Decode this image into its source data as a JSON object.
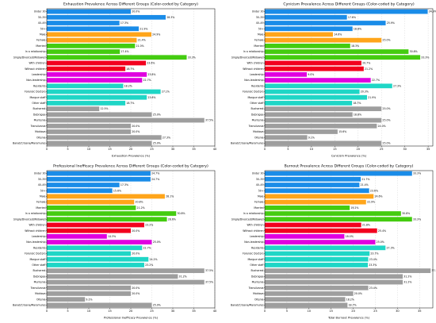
{
  "colors": {
    "Age": "#1a8ce8",
    "Gender": "#ffa51a",
    "Relationship": "#44cc10",
    "Children": "#f2001e",
    "Role": "#e000e0",
    "Staff": "#1fd6c6",
    "City": "#9e9e9e"
  },
  "chart_data": [
    {
      "type": "bar",
      "orientation": "horizontal",
      "title": "Exhaustion Prevalence Across Different Groups (Color-coded by Category)",
      "xlabel": "Exhaustion Prevalence (%)",
      "xlim": [
        0,
        40
      ],
      "xticks": [
        "0",
        "5",
        "10",
        "15",
        "20",
        "25",
        "30",
        "35",
        "40"
      ],
      "grid": true,
      "categories": [
        "Under 30",
        "30–39",
        "40–49",
        "50+",
        "Male",
        "Female",
        "Married",
        "In a relationship",
        "Single/Divorced/Widowed",
        "With children",
        "Without children",
        "Leadership",
        "Non-leadership",
        "Residents",
        "Forensic Doctors",
        "Morgue staff",
        "Other staff",
        "Bucharest",
        "Debrogea",
        "Muntenia",
        "Transilvania",
        "Moldova",
        "Oltenia",
        "Banat/Crisana/Maramures"
      ],
      "groups": [
        "Age",
        "Age",
        "Age",
        "Age",
        "Gender",
        "Gender",
        "Relationship",
        "Relationship",
        "Relationship",
        "Children",
        "Children",
        "Role",
        "Role",
        "Staff",
        "Staff",
        "Staff",
        "Staff",
        "City",
        "City",
        "City",
        "City",
        "City",
        "City",
        "City"
      ],
      "values": [
        20.0,
        28.3,
        17.3,
        21.9,
        24.9,
        21.4,
        21.0,
        17.4,
        33.3,
        23.6,
        18.7,
        23.8,
        22.7,
        18.2,
        27.1,
        23.8,
        18.7,
        12.5,
        25.0,
        37.5,
        20.0,
        20.0,
        27.3,
        25.0
      ],
      "labels": [
        "20.0%",
        "28.3%",
        "17.3%",
        "21.9%",
        "24.9%",
        "21.4%",
        "21.0%",
        "17.4%",
        "33.3%",
        "23.6%",
        "18.7%",
        "23.8%",
        "22.7%",
        "18.2%",
        "27.1%",
        "23.8%",
        "18.7%",
        "12.5%",
        "25.0%",
        "37.5%",
        "20.0%",
        "20.0%",
        "27.3%",
        "25.0%"
      ]
    },
    {
      "type": "bar",
      "orientation": "horizontal",
      "title": "Cynicism Prevalence Across Different Groups (Color-coded by Category)",
      "xlabel": "Cynicism Prevalence (%)",
      "xlim": [
        0,
        36
      ],
      "xticks": [
        "0",
        "5",
        "10",
        "15",
        "20",
        "25",
        "30",
        "35"
      ],
      "grid": true,
      "categories": [
        "Under 30",
        "30–39",
        "40–49",
        "50+",
        "Male",
        "Female",
        "Married",
        "In a relationship",
        "Single/Divorced/Widowed",
        "With children",
        "Without children",
        "Leadership",
        "Non-leadership",
        "Residents",
        "Forensic Doctors",
        "Morgue staff",
        "Other staff",
        "Bucharest",
        "Debrogea",
        "Muntenia",
        "Transilvania",
        "Moldova",
        "Oltenia",
        "Banat/Crisana/Maramures"
      ],
      "groups": [
        "Age",
        "Age",
        "Age",
        "Age",
        "Gender",
        "Gender",
        "Relationship",
        "Relationship",
        "Relationship",
        "Children",
        "Children",
        "Role",
        "Role",
        "Staff",
        "Staff",
        "Staff",
        "Staff",
        "City",
        "City",
        "City",
        "City",
        "City",
        "City",
        "City"
      ],
      "values": [
        34.9,
        17.6,
        25.9,
        18.8,
        14.6,
        25.0,
        18.3,
        30.8,
        33.3,
        20.7,
        21.2,
        9.0,
        22.7,
        27.3,
        20.3,
        21.9,
        18.7,
        25.0,
        18.8,
        25.0,
        24.0,
        15.6,
        9.1,
        25.0
      ],
      "labels": [
        "34.9%",
        "17.6%",
        "25.9%",
        "18.8%",
        "14.6%",
        "25.0%",
        "18.3%",
        "30.8%",
        "33.3%",
        "20.7%",
        "21.2%",
        "9.0%",
        "22.7%",
        "27.3%",
        "20.3%",
        "21.9%",
        "18.7%",
        "25.0%",
        "18.8%",
        "25.0%",
        "24.0%",
        "15.6%",
        "9.1%",
        "25.0%"
      ]
    },
    {
      "type": "bar",
      "orientation": "horizontal",
      "title": "Professional Inefficacy Prevalence Across Different Groups (Color-coded by Category)",
      "xlabel": "Professional Inefficacy Prevalence (%)",
      "xlim": [
        0,
        40
      ],
      "xticks": [
        "0",
        "5",
        "10",
        "15",
        "20",
        "25",
        "30",
        "35",
        "40"
      ],
      "grid": true,
      "categories": [
        "Under 30",
        "30–39",
        "40–49",
        "50+",
        "Male",
        "Female",
        "Married",
        "In a relationship",
        "Single/Divorced/Widowed",
        "With children",
        "Without children",
        "Leadership",
        "Non-leadership",
        "Residents",
        "Forensic Doctors",
        "Morgue staff",
        "Other staff",
        "Bucharest",
        "Debrogea",
        "Muntenia",
        "Transilvania",
        "Moldova",
        "Oltenia",
        "Banat/Crisana/Maramures"
      ],
      "groups": [
        "Age",
        "Age",
        "Age",
        "Age",
        "Gender",
        "Gender",
        "Relationship",
        "Relationship",
        "Relationship",
        "Children",
        "Children",
        "Role",
        "Role",
        "Staff",
        "Staff",
        "Staff",
        "Staff",
        "City",
        "City",
        "City",
        "City",
        "City",
        "City",
        "City"
      ],
      "values": [
        24.7,
        24.7,
        17.3,
        15.6,
        28.1,
        20.8,
        21.2,
        30.8,
        28.6,
        23.2,
        20.0,
        14.3,
        25.0,
        22.7,
        20.0,
        24.2,
        23.2,
        37.5,
        31.2,
        37.5,
        20.0,
        20.0,
        9.1,
        25.0
      ],
      "labels": [
        "24.7%",
        "24.7%",
        "17.3%",
        "15.6%",
        "28.1%",
        "20.8%",
        "21.2%",
        "30.8%",
        "28.6%",
        "23.2%",
        "20.0%",
        "14.3%",
        "25.0%",
        "22.7%",
        "20.0%",
        "24.2%",
        "23.2%",
        "37.5%",
        "31.2%",
        "37.5%",
        "20.0%",
        "20.0%",
        "9.1%",
        "25.0%"
      ]
    },
    {
      "type": "bar",
      "orientation": "horizontal",
      "title": "Burnout Prevalence Across Different Groups (Color-coded by Category)",
      "xlabel": "Total Burnout Prevalence (%)",
      "xlim": [
        0,
        38
      ],
      "xticks": [
        "0",
        "5",
        "10",
        "15",
        "20",
        "25",
        "30",
        "35"
      ],
      "grid": true,
      "categories": [
        "Under 30",
        "30–39",
        "40–49",
        "50+",
        "Male",
        "Female",
        "Married",
        "In a relationship",
        "Single/Divorced/Widowed",
        "With children",
        "Without children",
        "Leadership",
        "Non-leadership",
        "Residents",
        "Forensic Doctors",
        "Morgue staff",
        "Other staff",
        "Bucharest",
        "Debrogea",
        "Muntenia",
        "Transilvania",
        "Moldova",
        "Oltenia",
        "Banat/Crisana/Maramures"
      ],
      "groups": [
        "Age",
        "Age",
        "Age",
        "Age",
        "Gender",
        "Gender",
        "Relationship",
        "Relationship",
        "Relationship",
        "Children",
        "Children",
        "Role",
        "Role",
        "Staff",
        "Staff",
        "Staff",
        "Staff",
        "City",
        "City",
        "City",
        "City",
        "City",
        "City",
        "City"
      ],
      "values": [
        33.3,
        21.7,
        21.4,
        23.6,
        24.6,
        22.9,
        19.2,
        30.8,
        33.3,
        21.8,
        25.4,
        18.0,
        25.0,
        27.3,
        23.7,
        23.4,
        23.3,
        37.5,
        31.2,
        31.2,
        23.4,
        20.0,
        18.2,
        18.7
      ],
      "labels": [
        "33.3%",
        "21.7%",
        "21.4%",
        "23.6%",
        "24.6%",
        "22.9%",
        "19.2%",
        "30.8%",
        "33.3%",
        "21.8%",
        "25.4%",
        "18.0%",
        "25.0%",
        "27.3%",
        "23.7%",
        "23.4%",
        "23.3%",
        "37.5%",
        "31.2%",
        "31.2%",
        "23.4%",
        "20.0%",
        "18.2%",
        "18.7%"
      ]
    }
  ]
}
